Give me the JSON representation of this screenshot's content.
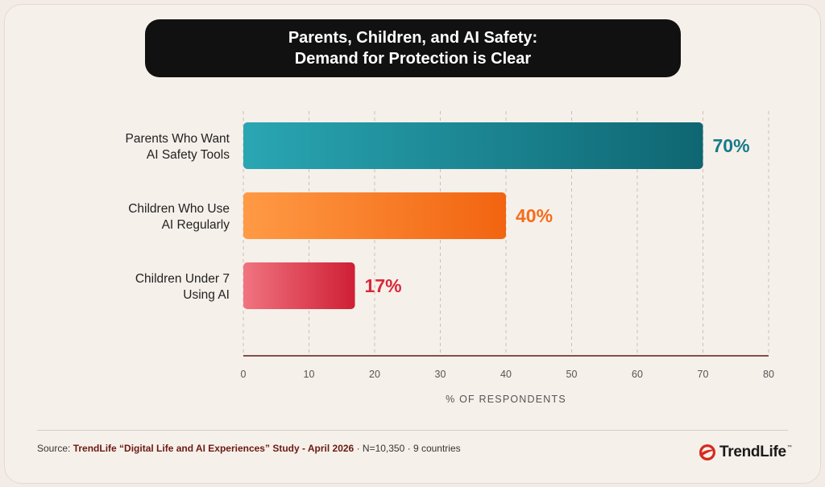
{
  "title": {
    "line1": "Parents, Children, and AI Safety:",
    "line2": "Demand for Protection is Clear"
  },
  "chart_data": {
    "type": "bar",
    "orientation": "horizontal",
    "categories": [
      [
        "Parents Who Want",
        "AI Safety Tools"
      ],
      [
        "Children Who Use",
        "AI Regularly"
      ],
      [
        "Children Under 7",
        "Using AI"
      ]
    ],
    "values": [
      70,
      40,
      17
    ],
    "value_labels": [
      "70%",
      "40%",
      "17%"
    ],
    "colors": [
      "#167a88",
      "#f56d1c",
      "#d9283a"
    ],
    "xlabel": "% OF RESPONDENTS",
    "xlim": [
      0,
      80
    ],
    "xticks": [
      0,
      10,
      20,
      30,
      40,
      50,
      60,
      70,
      80
    ],
    "grid": "vertical dashed"
  },
  "footer": {
    "source_prefix": "Source: ",
    "source_study": "TrendLife “Digital Life and AI Experiences” Study - April 2026",
    "source_suffix": " · N=10,350 · 9 countries",
    "logo_text": "TrendLife",
    "logo_tm": "™"
  }
}
